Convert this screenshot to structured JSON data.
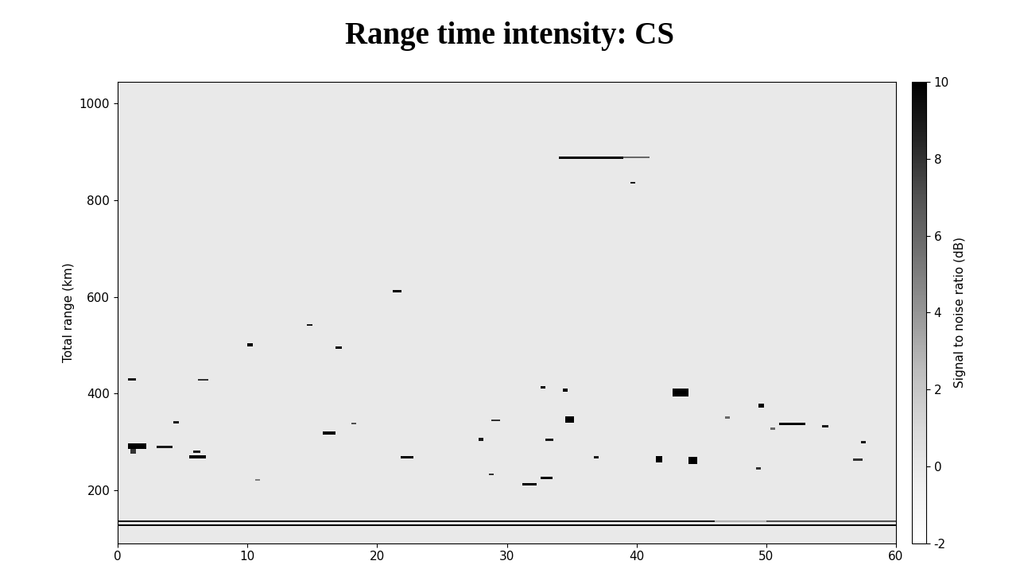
{
  "chart_data": {
    "type": "heatmap",
    "title": "Range time intensity: CS",
    "ylabel": "Total range (km)",
    "xlim": [
      0,
      60
    ],
    "xticks": [
      0,
      10,
      20,
      30,
      40,
      50,
      60
    ],
    "ylim": [
      90,
      1045
    ],
    "yticks": [
      200,
      400,
      600,
      800,
      1000
    ],
    "colorbar": {
      "label": "Signal to noise ratio (dB)",
      "lim": [
        -2,
        10
      ],
      "ticks": [
        -2,
        0,
        2,
        4,
        6,
        8,
        10
      ]
    },
    "background": 0,
    "echoes": [
      {
        "t0": 0,
        "t1": 60,
        "r0": 125,
        "r1": 128,
        "snr": 10
      },
      {
        "t0": 0,
        "t1": 46,
        "r0": 134,
        "r1": 137,
        "snr": 9
      },
      {
        "t0": 46,
        "t1": 50,
        "r0": 134,
        "r1": 137,
        "snr": 3
      },
      {
        "t0": 50,
        "t1": 60,
        "r0": 134,
        "r1": 137,
        "snr": 7
      },
      {
        "t0": 34,
        "t1": 39,
        "r0": 886,
        "r1": 891,
        "snr": 10
      },
      {
        "t0": 39,
        "t1": 41,
        "r0": 887,
        "r1": 890,
        "snr": 6
      },
      {
        "t0": 39.5,
        "t1": 39.9,
        "r0": 834,
        "r1": 838,
        "snr": 9
      },
      {
        "t0": 21.2,
        "t1": 21.9,
        "r0": 609,
        "r1": 614,
        "snr": 10
      },
      {
        "t0": 14.6,
        "t1": 15.0,
        "r0": 540,
        "r1": 544,
        "snr": 9
      },
      {
        "t0": 10.0,
        "t1": 10.4,
        "r0": 498,
        "r1": 504,
        "snr": 10
      },
      {
        "t0": 16.8,
        "t1": 17.3,
        "r0": 492,
        "r1": 497,
        "snr": 10
      },
      {
        "t0": 0.8,
        "t1": 1.4,
        "r0": 427,
        "r1": 432,
        "snr": 9
      },
      {
        "t0": 6.2,
        "t1": 7.0,
        "r0": 426,
        "r1": 429,
        "snr": 8
      },
      {
        "t0": 32.6,
        "t1": 33.0,
        "r0": 410,
        "r1": 415,
        "snr": 10
      },
      {
        "t0": 34.3,
        "t1": 34.7,
        "r0": 404,
        "r1": 410,
        "snr": 10
      },
      {
        "t0": 42.8,
        "t1": 44.0,
        "r0": 393,
        "r1": 410,
        "snr": 10
      },
      {
        "t0": 49.4,
        "t1": 49.8,
        "r0": 371,
        "r1": 378,
        "snr": 10
      },
      {
        "t0": 34.5,
        "t1": 35.2,
        "r0": 339,
        "r1": 352,
        "snr": 10
      },
      {
        "t0": 4.3,
        "t1": 4.7,
        "r0": 338,
        "r1": 342,
        "snr": 9
      },
      {
        "t0": 51.0,
        "t1": 53.0,
        "r0": 334,
        "r1": 339,
        "snr": 10
      },
      {
        "t0": 54.3,
        "t1": 54.8,
        "r0": 329,
        "r1": 335,
        "snr": 9
      },
      {
        "t0": 15.8,
        "t1": 16.8,
        "r0": 314,
        "r1": 321,
        "snr": 10
      },
      {
        "t0": 27.8,
        "t1": 28.2,
        "r0": 302,
        "r1": 308,
        "snr": 9
      },
      {
        "t0": 57.3,
        "t1": 57.7,
        "r0": 297,
        "r1": 302,
        "snr": 9
      },
      {
        "t0": 0.8,
        "t1": 2.2,
        "r0": 285,
        "r1": 296,
        "snr": 10
      },
      {
        "t0": 1.0,
        "t1": 1.4,
        "r0": 275,
        "r1": 285,
        "snr": 8
      },
      {
        "t0": 3.0,
        "t1": 4.2,
        "r0": 287,
        "r1": 292,
        "snr": 9
      },
      {
        "t0": 5.8,
        "t1": 6.4,
        "r0": 276,
        "r1": 281,
        "snr": 9
      },
      {
        "t0": 5.5,
        "t1": 6.8,
        "r0": 266,
        "r1": 272,
        "snr": 10
      },
      {
        "t0": 21.8,
        "t1": 22.8,
        "r0": 265,
        "r1": 270,
        "snr": 10
      },
      {
        "t0": 41.5,
        "t1": 42.0,
        "r0": 257,
        "r1": 271,
        "snr": 10
      },
      {
        "t0": 44.0,
        "t1": 44.7,
        "r0": 254,
        "r1": 268,
        "snr": 10
      },
      {
        "t0": 56.7,
        "t1": 57.4,
        "r0": 261,
        "r1": 265,
        "snr": 8
      },
      {
        "t0": 49.2,
        "t1": 49.6,
        "r0": 242,
        "r1": 248,
        "snr": 8
      },
      {
        "t0": 28.6,
        "t1": 29.0,
        "r0": 230,
        "r1": 234,
        "snr": 8
      },
      {
        "t0": 32.6,
        "t1": 33.5,
        "r0": 222,
        "r1": 227,
        "snr": 10
      },
      {
        "t0": 10.6,
        "t1": 11.0,
        "r0": 219,
        "r1": 223,
        "snr": 5
      },
      {
        "t0": 31.2,
        "t1": 32.3,
        "r0": 209,
        "r1": 215,
        "snr": 10
      },
      {
        "t0": 28.8,
        "t1": 29.5,
        "r0": 342,
        "r1": 346,
        "snr": 8
      },
      {
        "t0": 33.0,
        "t1": 33.6,
        "r0": 302,
        "r1": 306,
        "snr": 9
      },
      {
        "t0": 18.0,
        "t1": 18.4,
        "r0": 336,
        "r1": 340,
        "snr": 7
      },
      {
        "t0": 36.7,
        "t1": 37.1,
        "r0": 266,
        "r1": 271,
        "snr": 9
      },
      {
        "t0": 46.8,
        "t1": 47.2,
        "r0": 348,
        "r1": 352,
        "snr": 6
      },
      {
        "t0": 50.3,
        "t1": 50.7,
        "r0": 325,
        "r1": 329,
        "snr": 6
      }
    ]
  }
}
